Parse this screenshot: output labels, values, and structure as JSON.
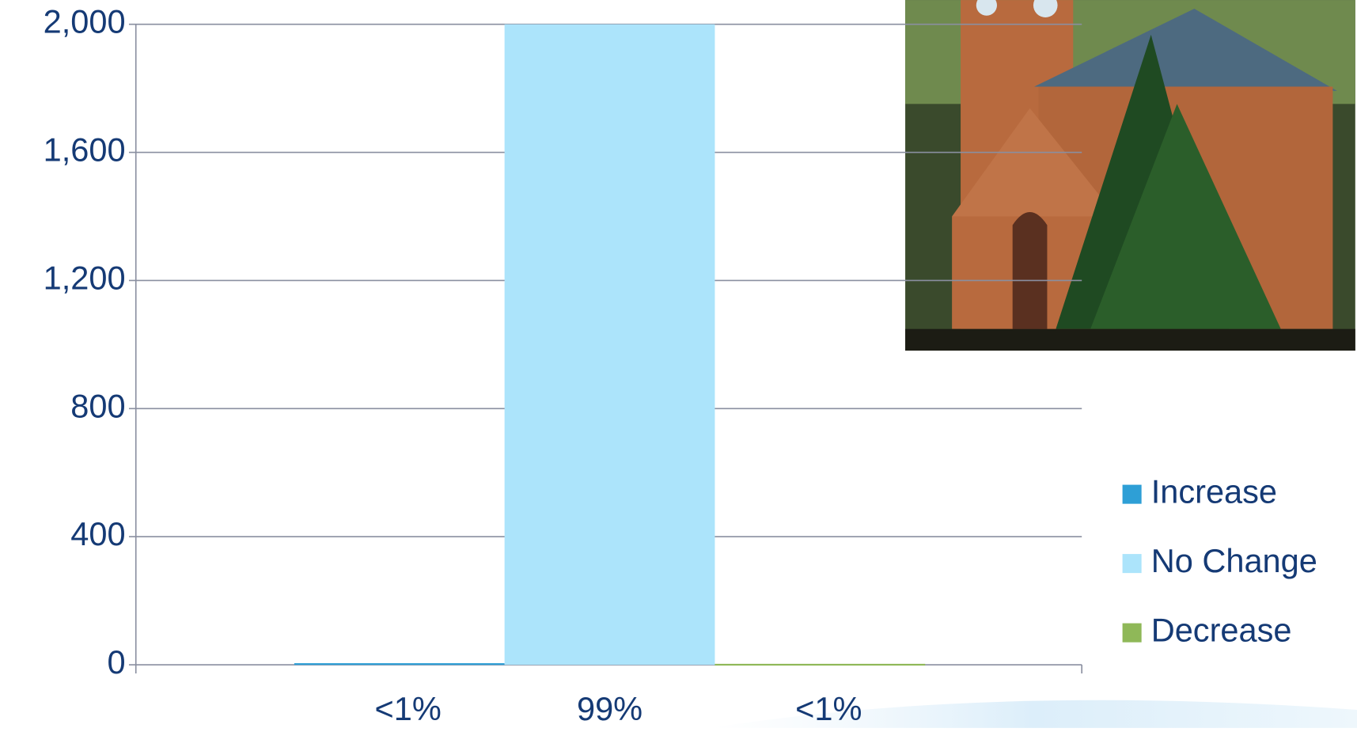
{
  "chart_data": {
    "type": "bar",
    "series": [
      {
        "name": "Increase",
        "color": "#2e9fd6",
        "values": [
          5
        ],
        "label": "<1%"
      },
      {
        "name": "No Change",
        "color": "#ace4fb",
        "values": [
          2000
        ],
        "label": "99%"
      },
      {
        "name": "Decrease",
        "color": "#8fb858",
        "values": [
          3
        ],
        "label": "<1%"
      }
    ],
    "ylim": [
      0,
      2000
    ],
    "yticks": [
      0,
      400,
      800,
      {
        "value": 1200,
        "label": "1,200"
      },
      {
        "value": 1600,
        "label": "1,600"
      },
      {
        "value": 2000,
        "label": "2,000"
      }
    ],
    "grid": true,
    "legend": "right"
  }
}
